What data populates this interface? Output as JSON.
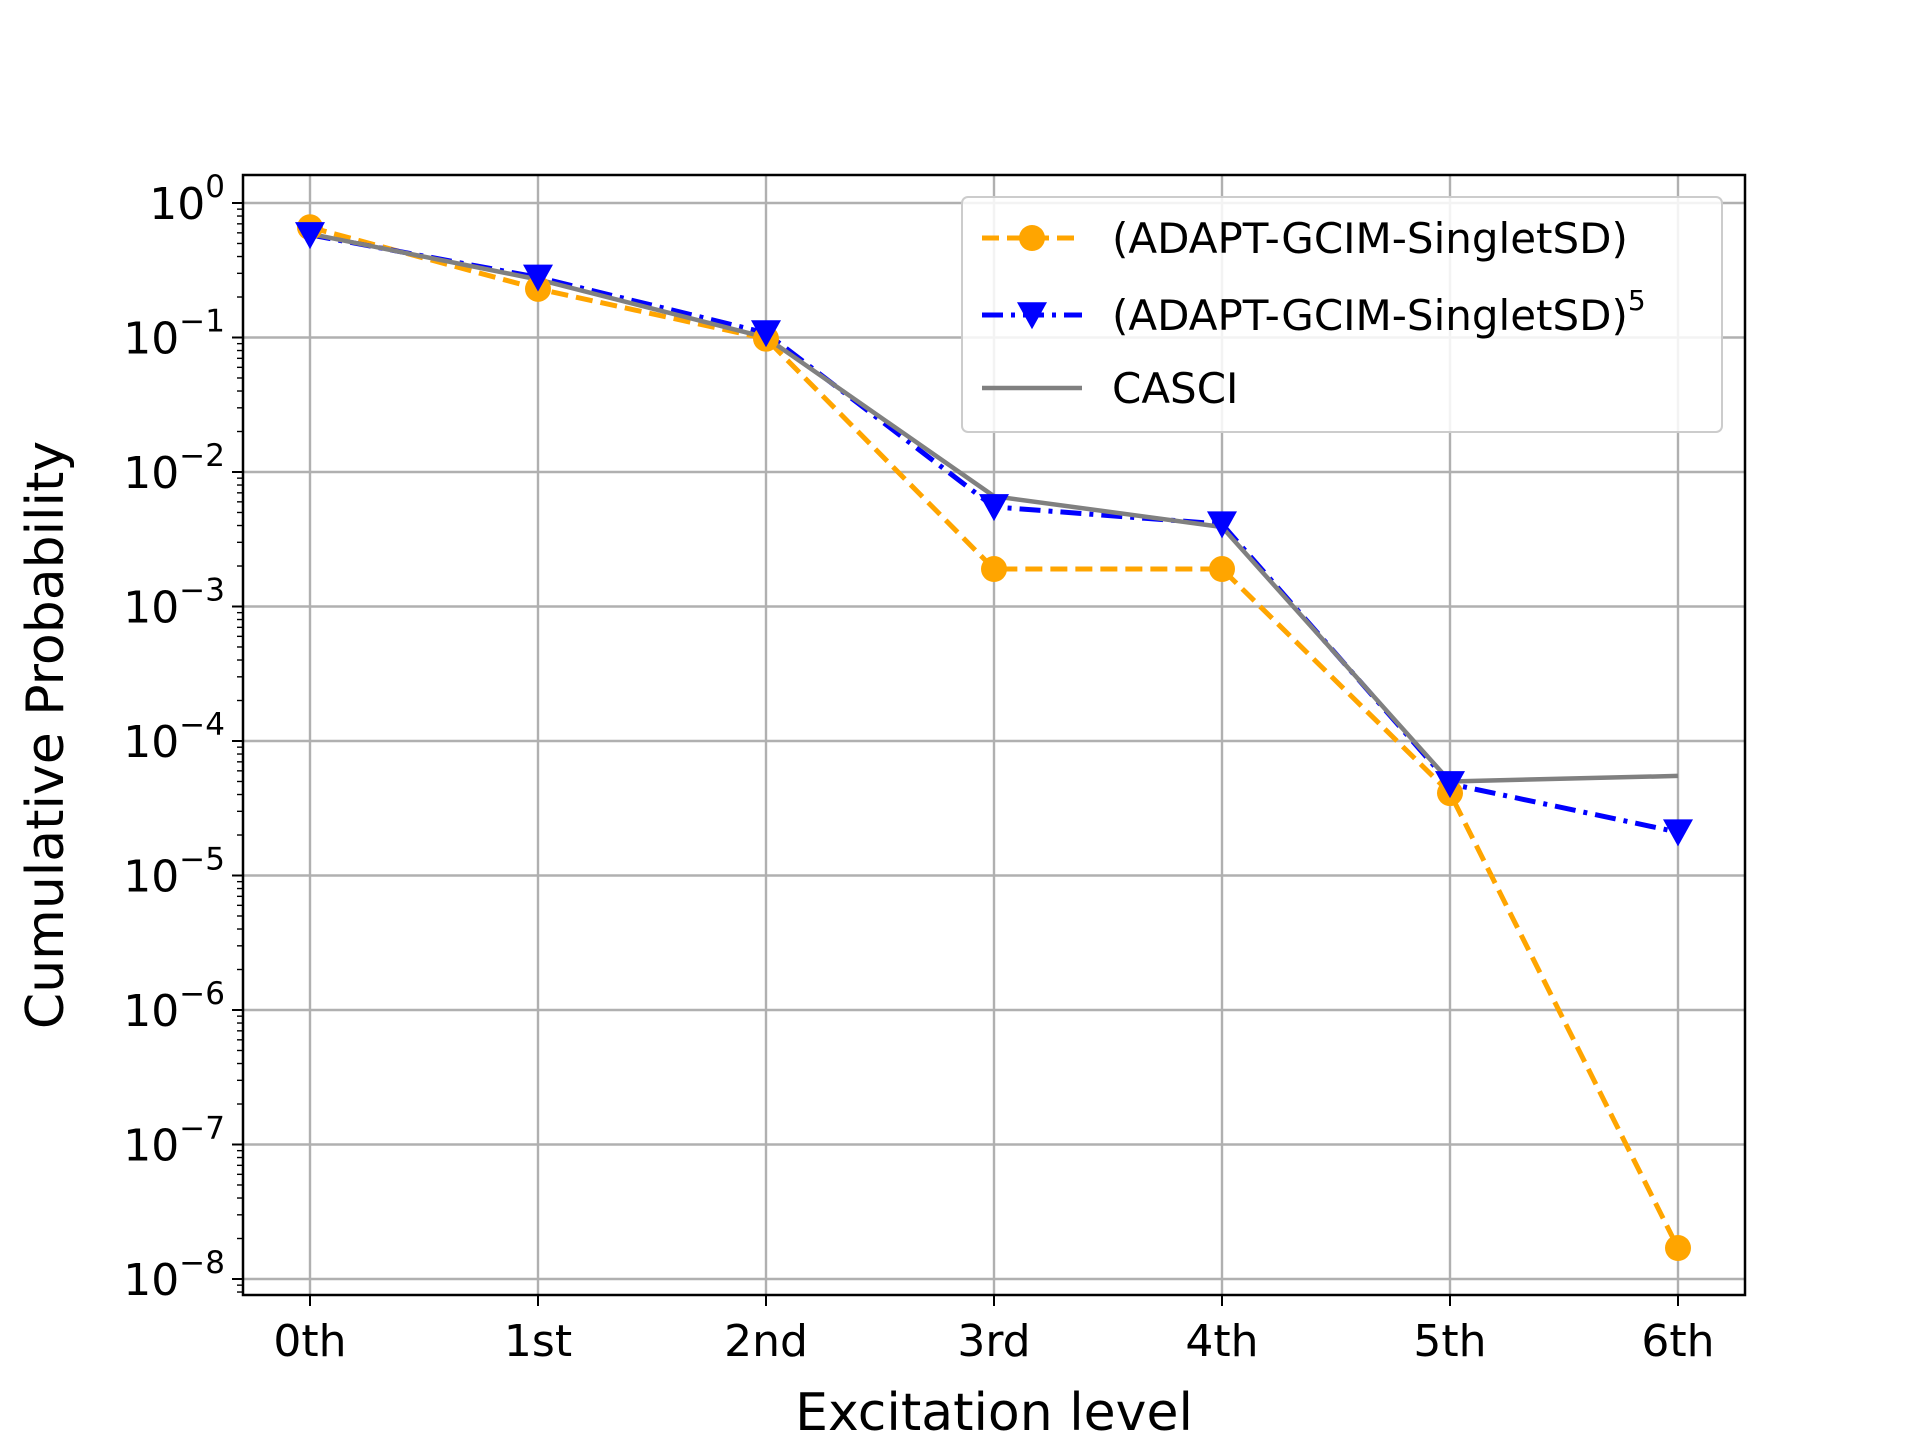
{
  "chart_data": {
    "type": "line",
    "title": "",
    "xlabel": "Excitation level",
    "ylabel": "Cumulative Probability",
    "yscale": "log",
    "ylim": [
      7e-09,
      1.5
    ],
    "grid": true,
    "legend_position": "top-right",
    "categories": [
      "0th",
      "1st",
      "2nd",
      "3rd",
      "4th",
      "5th",
      "6th"
    ],
    "y_ticks": [
      {
        "base": "10",
        "exp": "0",
        "value": 1
      },
      {
        "base": "10",
        "exp": "−1",
        "value": 0.1
      },
      {
        "base": "10",
        "exp": "−2",
        "value": 0.01
      },
      {
        "base": "10",
        "exp": "−3",
        "value": 0.001
      },
      {
        "base": "10",
        "exp": "−4",
        "value": 0.0001
      },
      {
        "base": "10",
        "exp": "−5",
        "value": 1e-05
      },
      {
        "base": "10",
        "exp": "−6",
        "value": 1e-06
      },
      {
        "base": "10",
        "exp": "−7",
        "value": 1e-07
      },
      {
        "base": "10",
        "exp": "−8",
        "value": 1e-08
      }
    ],
    "series": [
      {
        "name": "(ADAPT-GCIM-SingletSD)",
        "name_sup": "",
        "color": "#ffa500",
        "line_style": "dashed",
        "marker": "circle",
        "values": [
          0.66,
          0.23,
          0.098,
          0.0019,
          0.0019,
          4.1e-05,
          1.7e-08
        ]
      },
      {
        "name": "(ADAPT-GCIM-SingletSD)",
        "name_sup": "5",
        "color": "#0000ff",
        "line_style": "dashdot",
        "marker": "triangle-down",
        "values": [
          0.58,
          0.28,
          0.108,
          0.0055,
          0.0041,
          4.8e-05,
          2.1e-05
        ]
      },
      {
        "name": "CASCI",
        "name_sup": "",
        "color": "#808080",
        "line_style": "solid",
        "marker": "none",
        "values": [
          0.59,
          0.27,
          0.1,
          0.0066,
          0.0039,
          5e-05,
          5.5e-05
        ]
      }
    ]
  }
}
